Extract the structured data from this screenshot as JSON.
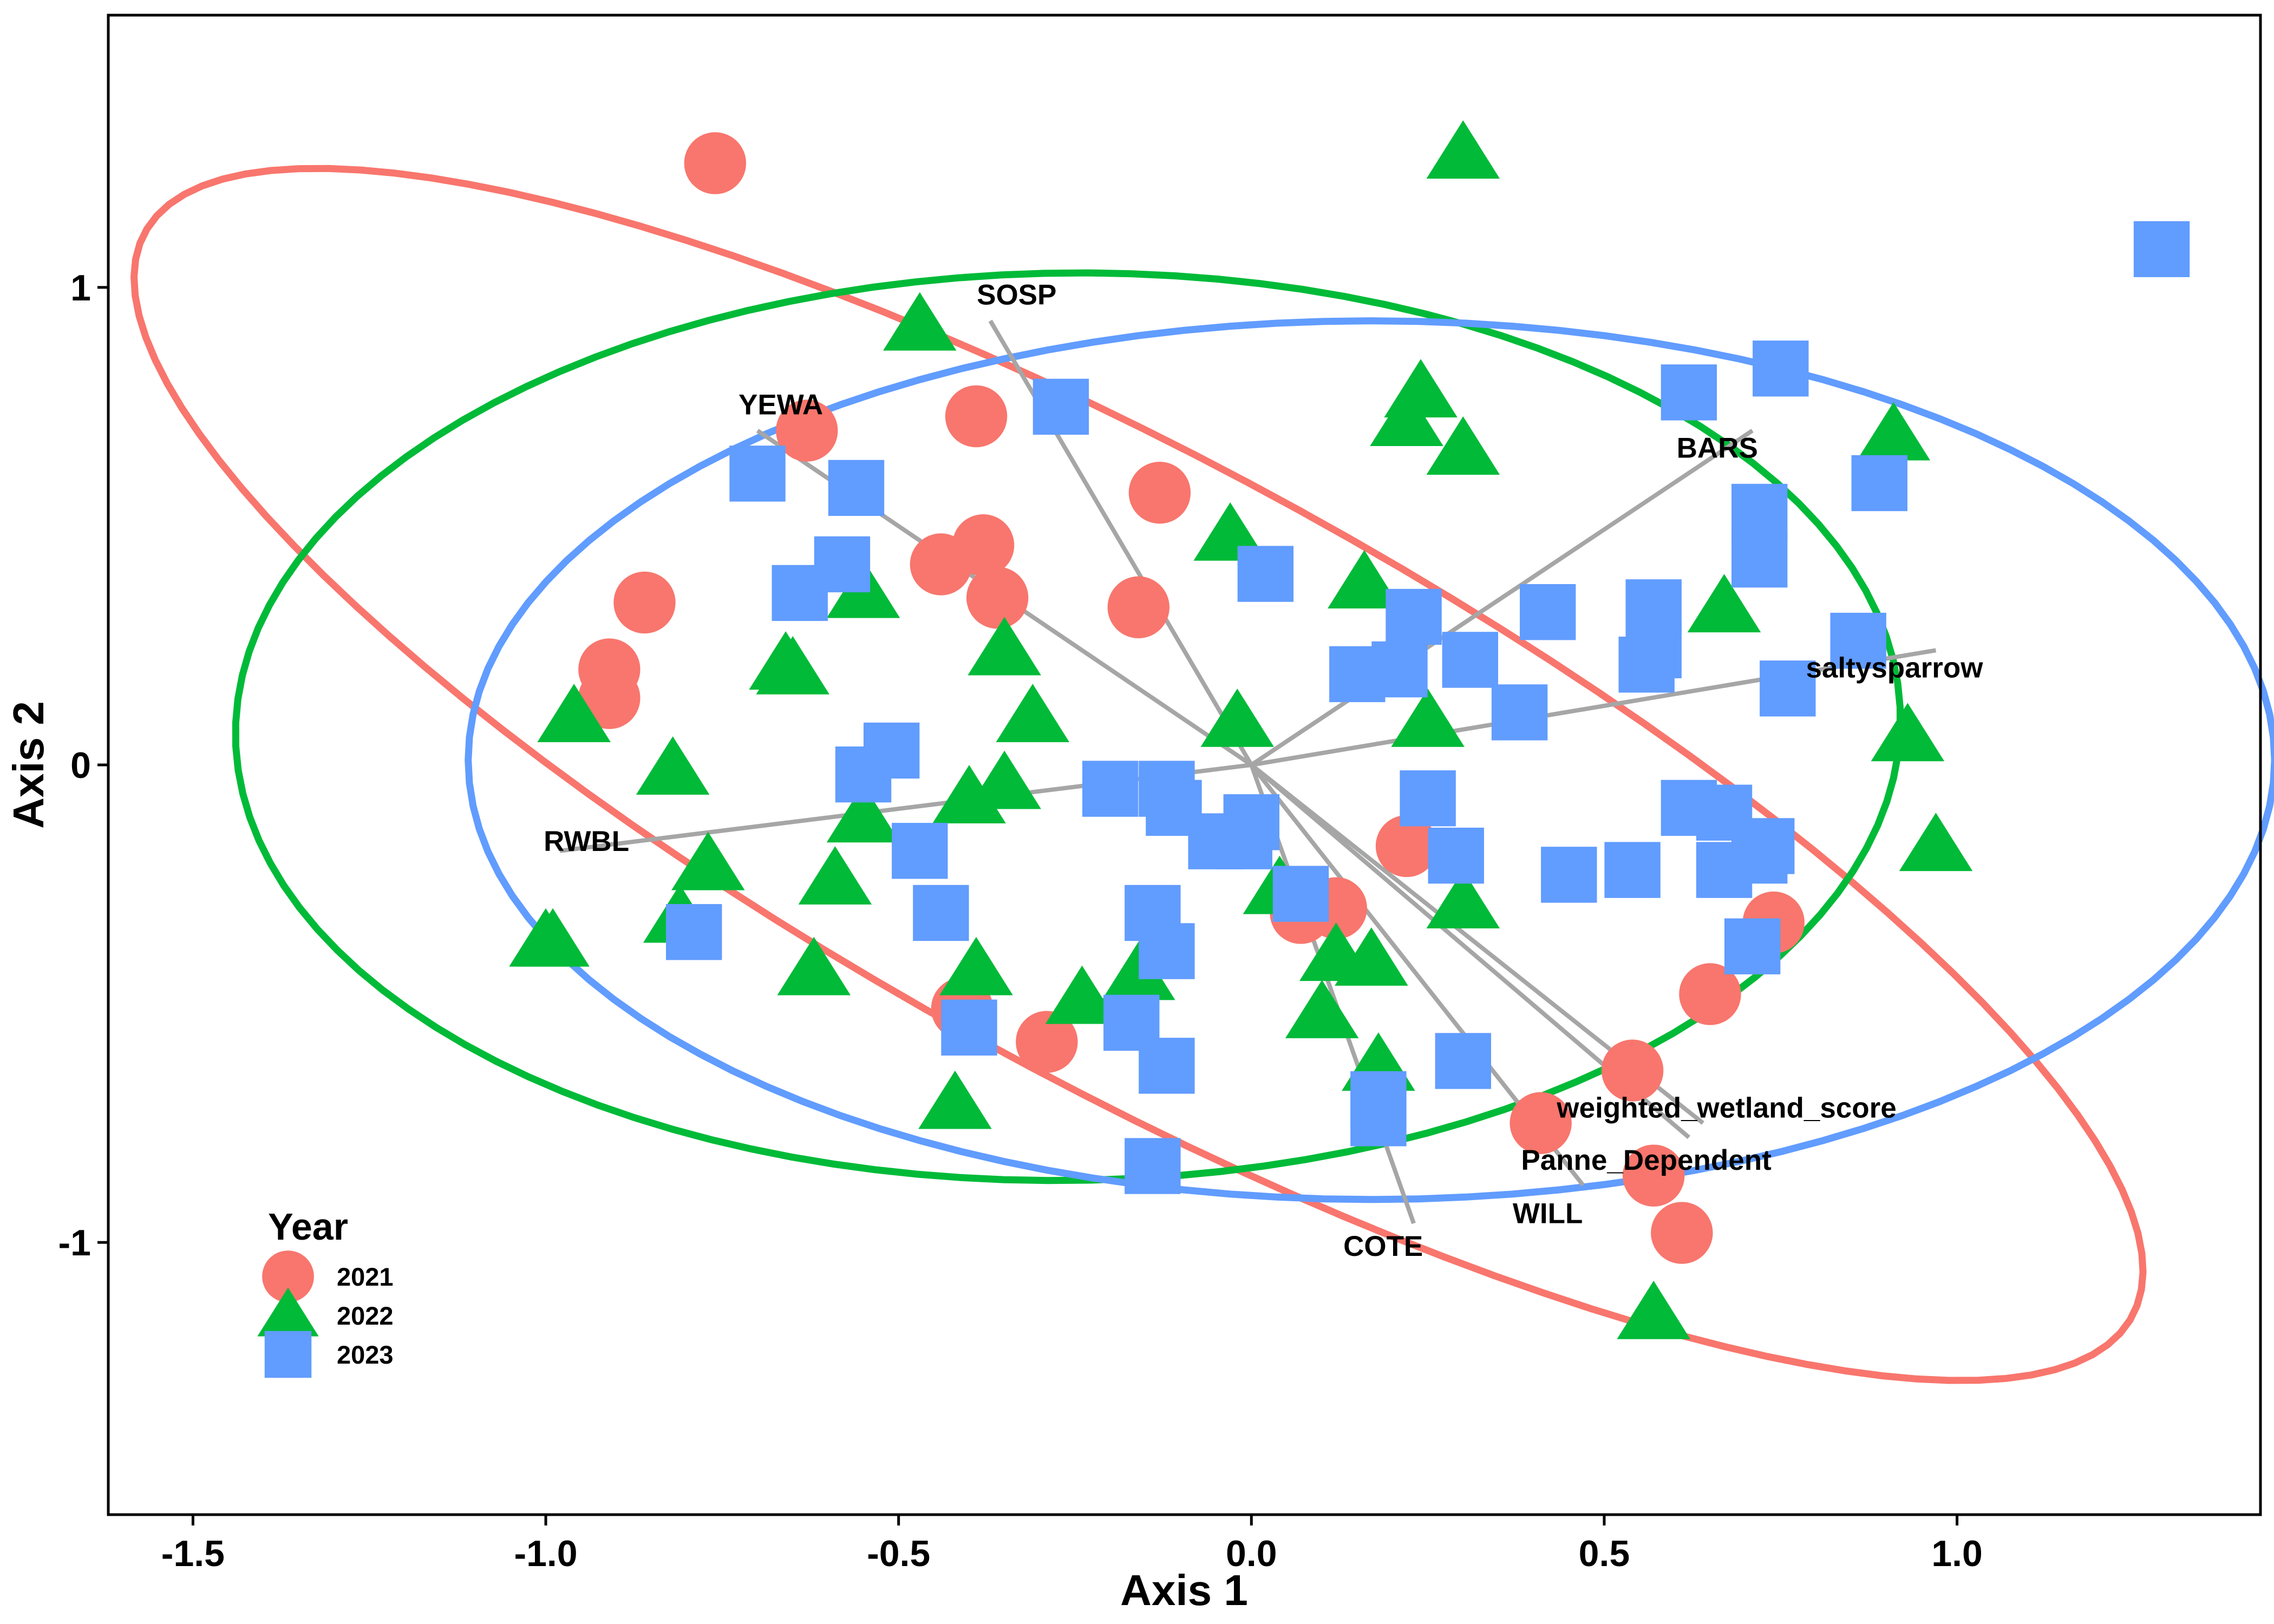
{
  "chart_data": {
    "type": "scatter",
    "title": "",
    "xlabel": "Axis 1",
    "ylabel": "Axis 2",
    "xlim": [
      -1.62,
      1.43
    ],
    "ylim": [
      -1.57,
      1.57
    ],
    "xticks": [
      -1.5,
      -1.0,
      -0.5,
      0.0,
      0.5,
      1.0
    ],
    "xtick_labels": [
      "-1.5",
      "-1.0",
      "-0.5",
      "0.0",
      "0.5",
      "1.0"
    ],
    "yticks": [
      -1,
      0,
      1
    ],
    "ytick_labels": [
      "-1",
      "0",
      "1"
    ],
    "grid": false,
    "legend": {
      "title": "Year",
      "position": "bottom-left"
    },
    "series": [
      {
        "name": "2021",
        "color": "#F8766D",
        "marker": "circle",
        "points": [
          [
            -0.76,
            1.26
          ],
          [
            -0.63,
            0.7
          ],
          [
            -0.39,
            0.73
          ],
          [
            -0.13,
            0.57
          ],
          [
            -0.44,
            0.42
          ],
          [
            -0.38,
            0.46
          ],
          [
            -0.36,
            0.35
          ],
          [
            -0.16,
            0.33
          ],
          [
            -0.86,
            0.34
          ],
          [
            -0.91,
            0.2
          ],
          [
            -0.91,
            0.14
          ],
          [
            0.22,
            -0.17
          ],
          [
            0.07,
            -0.31
          ],
          [
            0.12,
            -0.3
          ],
          [
            -0.41,
            -0.51
          ],
          [
            -0.29,
            -0.58
          ],
          [
            0.41,
            -0.75
          ],
          [
            0.54,
            -0.64
          ],
          [
            0.57,
            -0.86
          ],
          [
            0.61,
            -0.98
          ],
          [
            0.65,
            -0.48
          ],
          [
            0.74,
            -0.33
          ]
        ]
      },
      {
        "name": "2022",
        "color": "#00BA38",
        "marker": "triangle",
        "points": [
          [
            0.3,
            1.28
          ],
          [
            -0.47,
            0.92
          ],
          [
            0.24,
            0.78
          ],
          [
            0.22,
            0.72
          ],
          [
            0.3,
            0.66
          ],
          [
            0.91,
            0.69
          ],
          [
            -0.03,
            0.48
          ],
          [
            0.16,
            0.38
          ],
          [
            0.67,
            0.33
          ],
          [
            -0.55,
            0.36
          ],
          [
            -0.35,
            0.24
          ],
          [
            -0.66,
            0.21
          ],
          [
            -0.65,
            0.2
          ],
          [
            -0.96,
            0.1
          ],
          [
            -0.31,
            0.1
          ],
          [
            -0.02,
            0.09
          ],
          [
            0.25,
            0.09
          ],
          [
            0.93,
            0.06
          ],
          [
            -0.82,
            -0.01
          ],
          [
            -0.55,
            -0.11
          ],
          [
            -0.4,
            -0.07
          ],
          [
            -0.35,
            -0.04
          ],
          [
            -0.77,
            -0.21
          ],
          [
            -0.59,
            -0.24
          ],
          [
            -0.81,
            -0.32
          ],
          [
            -1.0,
            -0.37
          ],
          [
            -0.99,
            -0.37
          ],
          [
            -0.62,
            -0.43
          ],
          [
            -0.39,
            -0.43
          ],
          [
            -0.24,
            -0.49
          ],
          [
            -0.16,
            -0.44
          ],
          [
            0.04,
            -0.26
          ],
          [
            0.12,
            -0.4
          ],
          [
            0.17,
            -0.41
          ],
          [
            0.1,
            -0.52
          ],
          [
            0.18,
            -0.63
          ],
          [
            0.3,
            -0.29
          ],
          [
            0.97,
            -0.17
          ],
          [
            -0.42,
            -0.71
          ],
          [
            0.57,
            -1.15
          ]
        ]
      },
      {
        "name": "2023",
        "color": "#619CFF",
        "marker": "square",
        "points": [
          [
            1.29,
            1.08
          ],
          [
            0.75,
            0.83
          ],
          [
            0.62,
            0.78
          ],
          [
            -0.27,
            0.75
          ],
          [
            -0.7,
            0.61
          ],
          [
            -0.56,
            0.58
          ],
          [
            0.89,
            0.59
          ],
          [
            0.72,
            0.53
          ],
          [
            0.72,
            0.43
          ],
          [
            -0.58,
            0.42
          ],
          [
            -0.64,
            0.36
          ],
          [
            0.02,
            0.4
          ],
          [
            0.23,
            0.31
          ],
          [
            0.42,
            0.32
          ],
          [
            0.57,
            0.33
          ],
          [
            0.57,
            0.24
          ],
          [
            0.56,
            0.21
          ],
          [
            0.86,
            0.26
          ],
          [
            0.76,
            0.16
          ],
          [
            0.15,
            0.19
          ],
          [
            0.21,
            0.2
          ],
          [
            0.31,
            0.22
          ],
          [
            0.38,
            0.11
          ],
          [
            -0.51,
            0.03
          ],
          [
            -0.55,
            -0.02
          ],
          [
            -0.2,
            -0.05
          ],
          [
            -0.12,
            -0.05
          ],
          [
            -0.11,
            -0.09
          ],
          [
            0.0,
            -0.12
          ],
          [
            -0.05,
            -0.16
          ],
          [
            -0.01,
            -0.16
          ],
          [
            0.25,
            -0.07
          ],
          [
            0.62,
            -0.09
          ],
          [
            0.67,
            -0.1
          ],
          [
            0.73,
            -0.17
          ],
          [
            0.72,
            -0.19
          ],
          [
            0.29,
            -0.19
          ],
          [
            0.45,
            -0.23
          ],
          [
            0.54,
            -0.22
          ],
          [
            0.67,
            -0.22
          ],
          [
            -0.47,
            -0.18
          ],
          [
            -0.44,
            -0.31
          ],
          [
            -0.79,
            -0.35
          ],
          [
            0.07,
            -0.27
          ],
          [
            -0.14,
            -0.31
          ],
          [
            -0.12,
            -0.39
          ],
          [
            0.71,
            -0.38
          ],
          [
            -0.4,
            -0.55
          ],
          [
            -0.17,
            -0.54
          ],
          [
            -0.12,
            -0.63
          ],
          [
            0.3,
            -0.62
          ],
          [
            0.18,
            -0.7
          ],
          [
            0.18,
            -0.74
          ],
          [
            -0.14,
            -0.84
          ]
        ]
      }
    ],
    "vectors": [
      {
        "label": "SOSP",
        "tip": [
          -0.37,
          0.93
        ]
      },
      {
        "label": "YEWA",
        "tip": [
          -0.7,
          0.7
        ]
      },
      {
        "label": "BARS",
        "tip": [
          0.71,
          0.7
        ]
      },
      {
        "label": "saltysparrow",
        "tip": [
          0.97,
          0.24
        ]
      },
      {
        "label": "RWBL",
        "tip": [
          -0.98,
          -0.18
        ]
      },
      {
        "label": "COTE",
        "tip": [
          0.23,
          -0.96
        ]
      },
      {
        "label": "WILL",
        "tip": [
          0.47,
          -0.88
        ]
      },
      {
        "label": "Panne_Dependent",
        "tip": [
          0.62,
          -0.78
        ]
      },
      {
        "label": "weighted_wetland_score",
        "tip": [
          0.64,
          -0.75
        ]
      }
    ],
    "ellipses": [
      {
        "year": "2021",
        "center": [
          -0.16,
          -0.02
        ],
        "semi_axes": [
          1.82,
          0.57
        ],
        "angle_deg": -41,
        "color": "#F8766D"
      },
      {
        "year": "2022",
        "center": [
          -0.26,
          0.08
        ],
        "semi_axes": [
          1.18,
          0.95
        ],
        "angle_deg": 2,
        "color": "#00BA38"
      },
      {
        "year": "2023",
        "center": [
          0.17,
          0.01
        ],
        "semi_axes": [
          1.28,
          0.92
        ],
        "angle_deg": 0,
        "color": "#619CFF"
      }
    ]
  }
}
